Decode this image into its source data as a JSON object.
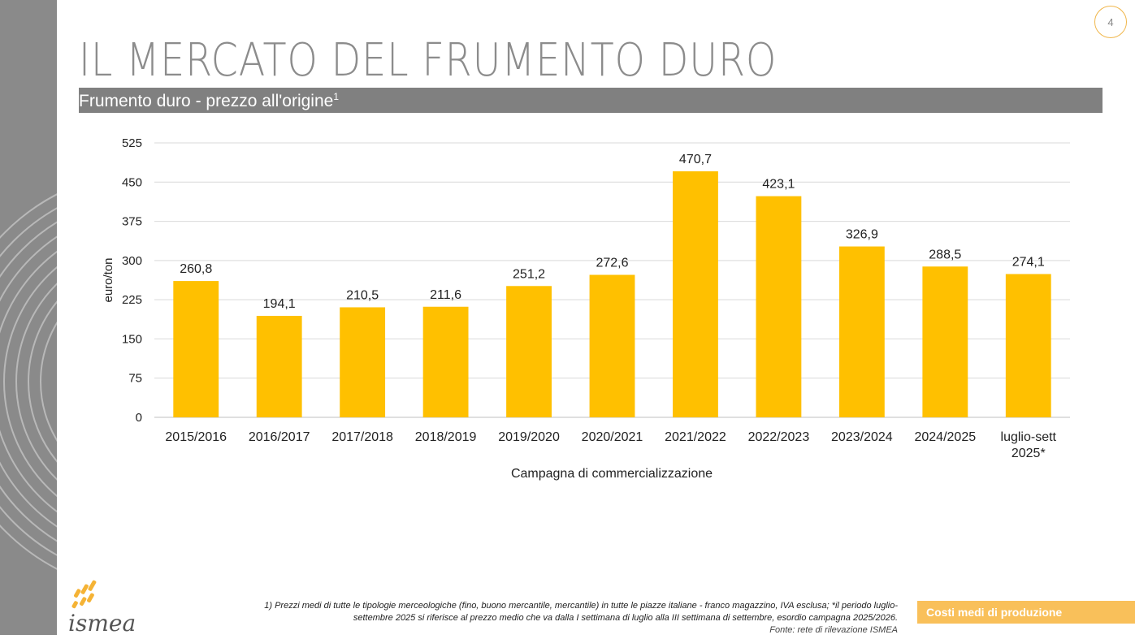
{
  "page": {
    "number": "4",
    "title": "IL MERCATO DEL FRUMENTO DURO",
    "subtitle": "Frumento duro - prezzo all'origine",
    "subtitle_sup": "1",
    "footnote_line1": "1) Prezzi medi di tutte le tipologie merceologiche (fino, buono mercantile, mercantile) in tutte le piazze italiane - franco magazzino, IVA esclusa;  *il periodo luglio-",
    "footnote_line2": "settembre 2025 si riferisce al prezzo medio che va dalla I settimana di luglio alla III settimana di settembre, esordio campagna 2025/2026.",
    "footnote_source": "Fonte: rete di rilevazione ISMEA",
    "section_tag": "Costi medi di produzione",
    "logo_text": "ismea"
  },
  "colors": {
    "bar": "#FFC000",
    "accent": "#F9C05A",
    "grid": "#D9D9D9",
    "title": "#8C8C8C"
  },
  "chart_data": {
    "type": "bar",
    "title": "Frumento duro - prezzo all'origine",
    "xlabel": "Campagna di commercializzazione",
    "ylabel": "euro/ton",
    "ylim": [
      0,
      525
    ],
    "yticks": [
      0,
      75,
      150,
      225,
      300,
      375,
      450,
      525
    ],
    "categories": [
      [
        "2015/2016"
      ],
      [
        "2016/2017"
      ],
      [
        "2017/2018"
      ],
      [
        "2018/2019"
      ],
      [
        "2019/2020"
      ],
      [
        "2020/2021"
      ],
      [
        "2021/2022"
      ],
      [
        "2022/2023"
      ],
      [
        "2023/2024"
      ],
      [
        "2024/2025"
      ],
      [
        "luglio-sett",
        "2025*"
      ]
    ],
    "values": [
      260.8,
      194.1,
      210.5,
      211.6,
      251.2,
      272.6,
      470.7,
      423.1,
      326.9,
      288.5,
      274.1
    ],
    "value_labels": [
      "260,8",
      "194,1",
      "210,5",
      "211,6",
      "251,2",
      "272,6",
      "470,7",
      "423,1",
      "326,9",
      "288,5",
      "274,1"
    ],
    "grid": true,
    "legend": "none"
  }
}
